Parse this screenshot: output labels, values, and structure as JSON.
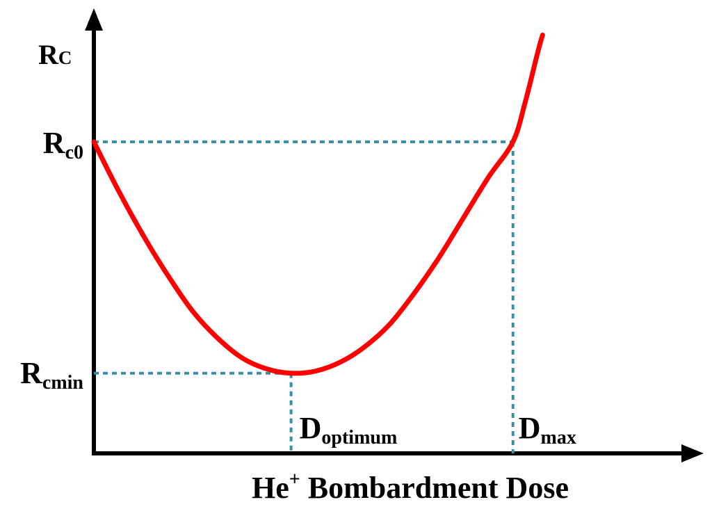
{
  "chart_data": {
    "type": "line",
    "title": "",
    "xlabel": {
      "main": "He",
      "sup": "+",
      "rest": " Bombardment Dose"
    },
    "ylabel": {
      "main": "R",
      "sub": "C"
    },
    "y_markers": [
      {
        "main": "R",
        "sub": "c0",
        "value": 0.7
      },
      {
        "main": "R",
        "sub": "cmin",
        "value": 0.18
      }
    ],
    "x_markers": [
      {
        "main": "D",
        "sub": "optimum",
        "value": 0.4
      },
      {
        "main": "D",
        "sub": "max",
        "value": 0.85
      }
    ],
    "xlim": [
      0,
      1.1
    ],
    "ylim": [
      0,
      1.0
    ],
    "series": [
      {
        "points": [
          [
            0.0,
            0.7
          ],
          [
            0.05,
            0.59
          ],
          [
            0.1,
            0.49
          ],
          [
            0.15,
            0.4
          ],
          [
            0.2,
            0.32
          ],
          [
            0.25,
            0.26
          ],
          [
            0.3,
            0.215
          ],
          [
            0.35,
            0.19
          ],
          [
            0.4,
            0.18
          ],
          [
            0.45,
            0.185
          ],
          [
            0.5,
            0.205
          ],
          [
            0.55,
            0.24
          ],
          [
            0.6,
            0.29
          ],
          [
            0.65,
            0.36
          ],
          [
            0.7,
            0.44
          ],
          [
            0.75,
            0.53
          ],
          [
            0.8,
            0.62
          ],
          [
            0.85,
            0.7
          ],
          [
            0.875,
            0.79
          ],
          [
            0.9,
            0.9
          ],
          [
            0.91,
            0.94
          ]
        ]
      }
    ],
    "colors": {
      "curve": "#ff0000",
      "guide": "#3a8fa8",
      "axis": "#000000"
    }
  }
}
